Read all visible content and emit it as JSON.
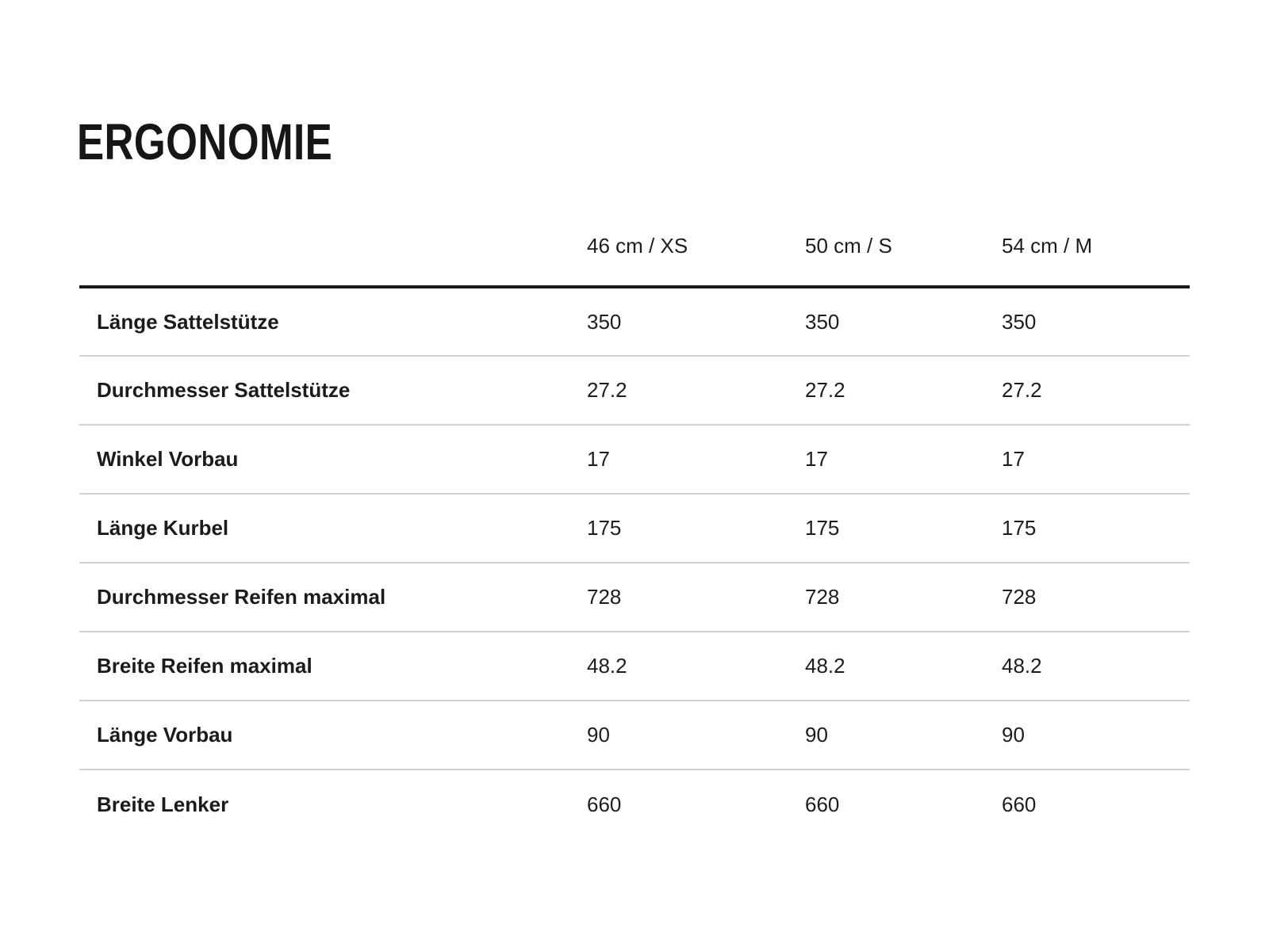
{
  "page": {
    "title": "ERGONOMIE"
  },
  "colors": {
    "background": "#ffffff",
    "text": "#1d1d1d",
    "header_rule": "#1a1a1a",
    "row_separator": "#cdd2d6"
  },
  "table": {
    "column_headers": [
      "46 cm / XS",
      "50 cm / S",
      "54 cm / M"
    ],
    "rows": [
      {
        "label": "Länge Sattelstütze",
        "values": [
          "350",
          "350",
          "350"
        ]
      },
      {
        "label": "Durchmesser Sattelstütze",
        "values": [
          "27.2",
          "27.2",
          "27.2"
        ]
      },
      {
        "label": "Winkel Vorbau",
        "values": [
          "17",
          "17",
          "17"
        ]
      },
      {
        "label": "Länge Kurbel",
        "values": [
          "175",
          "175",
          "175"
        ]
      },
      {
        "label": "Durchmesser Reifen maximal",
        "values": [
          "728",
          "728",
          "728"
        ]
      },
      {
        "label": "Breite Reifen maximal",
        "values": [
          "48.2",
          "48.2",
          "48.2"
        ]
      },
      {
        "label": "Länge Vorbau",
        "values": [
          "90",
          "90",
          "90"
        ]
      },
      {
        "label": "Breite Lenker",
        "values": [
          "660",
          "660",
          "660"
        ]
      }
    ]
  },
  "chart_data": {
    "type": "table",
    "title": "ERGONOMIE",
    "categories": [
      "46 cm / XS",
      "50 cm / S",
      "54 cm / M"
    ],
    "series": [
      {
        "name": "Länge Sattelstütze",
        "values": [
          350,
          350,
          350
        ]
      },
      {
        "name": "Durchmesser Sattelstütze",
        "values": [
          27.2,
          27.2,
          27.2
        ]
      },
      {
        "name": "Winkel Vorbau",
        "values": [
          17,
          17,
          17
        ]
      },
      {
        "name": "Länge Kurbel",
        "values": [
          175,
          175,
          175
        ]
      },
      {
        "name": "Durchmesser Reifen maximal",
        "values": [
          728,
          728,
          728
        ]
      },
      {
        "name": "Breite Reifen maximal",
        "values": [
          48.2,
          48.2,
          48.2
        ]
      },
      {
        "name": "Länge Vorbau",
        "values": [
          90,
          90,
          90
        ]
      },
      {
        "name": "Breite Lenker",
        "values": [
          660,
          660,
          660
        ]
      }
    ]
  }
}
